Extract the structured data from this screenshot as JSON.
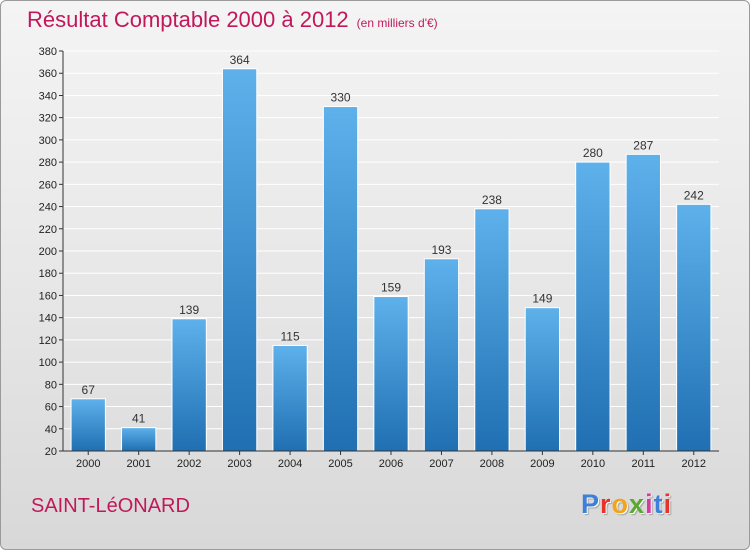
{
  "header": {
    "title": "Résultat Comptable 2000 à 2012",
    "unit": "(en milliers d'€)"
  },
  "footer": {
    "place": "SAINT-LéONARD",
    "logo_letters": [
      "P",
      "r",
      "o",
      "x",
      "i",
      "t",
      "i"
    ],
    "logo_colors": [
      "#3d7fd9",
      "#e5332a",
      "#f2a41a",
      "#5aa832",
      "#d63aa0",
      "#3d7fd9",
      "#e5332a"
    ]
  },
  "colors": {
    "title": "#c2185b",
    "bar_top": "#5eb1eb",
    "bar_bottom": "#1f6fb2"
  },
  "chart_data": {
    "type": "bar",
    "title": "Résultat Comptable 2000 à 2012",
    "xlabel": "",
    "ylabel": "",
    "ylim": [
      20,
      380
    ],
    "y_step": 20,
    "grid": true,
    "categories": [
      "2000",
      "2001",
      "2002",
      "2003",
      "2004",
      "2005",
      "2006",
      "2007",
      "2008",
      "2009",
      "2010",
      "2011",
      "2012"
    ],
    "values": [
      67,
      41,
      139,
      364,
      115,
      330,
      159,
      193,
      238,
      149,
      280,
      287,
      242
    ]
  }
}
